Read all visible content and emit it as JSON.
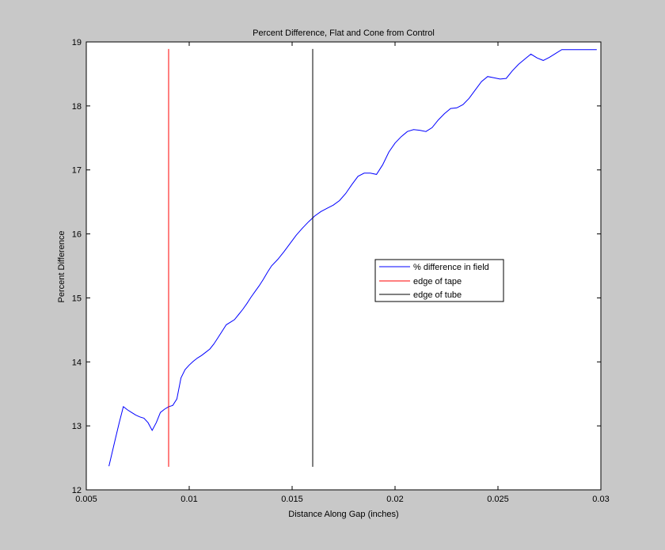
{
  "chart_data": {
    "type": "line",
    "title": "Percent Difference, Flat and Cone from Control",
    "xlabel": "Distance Along Gap (inches)",
    "ylabel": "Percent Difference",
    "xlim": [
      0.005,
      0.03
    ],
    "ylim": [
      12,
      19
    ],
    "xticks": [
      {
        "value": 0.005,
        "label": "0.005"
      },
      {
        "value": 0.01,
        "label": "0.01"
      },
      {
        "value": 0.015,
        "label": "0.015"
      },
      {
        "value": 0.02,
        "label": "0.02"
      },
      {
        "value": 0.025,
        "label": "0.025"
      },
      {
        "value": 0.03,
        "label": "0.03"
      }
    ],
    "yticks": [
      {
        "value": 12,
        "label": "12"
      },
      {
        "value": 13,
        "label": "13"
      },
      {
        "value": 14,
        "label": "14"
      },
      {
        "value": 15,
        "label": "15"
      },
      {
        "value": 16,
        "label": "16"
      },
      {
        "value": 17,
        "label": "17"
      },
      {
        "value": 18,
        "label": "18"
      },
      {
        "value": 19,
        "label": "19"
      }
    ],
    "grid": false,
    "legend_position": "center-right",
    "series": [
      {
        "name": "% difference in field",
        "color": "#0000ff",
        "x": [
          0.0061,
          0.0064,
          0.0066,
          0.0068,
          0.007,
          0.0072,
          0.0074,
          0.0076,
          0.0078,
          0.008,
          0.0082,
          0.0084,
          0.0086,
          0.0088,
          0.009,
          0.0092,
          0.0094,
          0.0096,
          0.0098,
          0.01,
          0.0102,
          0.0104,
          0.0106,
          0.0108,
          0.011,
          0.0112,
          0.0114,
          0.0116,
          0.0118,
          0.012,
          0.0122,
          0.0124,
          0.0126,
          0.0128,
          0.013,
          0.0132,
          0.0134,
          0.0136,
          0.0138,
          0.014,
          0.0143,
          0.0146,
          0.0149,
          0.0152,
          0.0155,
          0.0158,
          0.0161,
          0.0164,
          0.0167,
          0.017,
          0.0173,
          0.0176,
          0.0179,
          0.0182,
          0.0185,
          0.0188,
          0.0191,
          0.0194,
          0.0197,
          0.02,
          0.0203,
          0.0206,
          0.0209,
          0.0212,
          0.0215,
          0.0218,
          0.0221,
          0.0224,
          0.0227,
          0.023,
          0.0233,
          0.0236,
          0.0239,
          0.0242,
          0.0245,
          0.0248,
          0.0251,
          0.0254,
          0.0257,
          0.026,
          0.0263,
          0.0266,
          0.0269,
          0.0272,
          0.0275,
          0.0278,
          0.0281,
          0.0284,
          0.0287,
          0.029,
          0.0293,
          0.0296,
          0.0298
        ],
        "y": [
          12.37,
          12.78,
          13.05,
          13.3,
          13.25,
          13.21,
          13.17,
          13.14,
          13.12,
          13.05,
          12.93,
          13.05,
          13.21,
          13.26,
          13.3,
          13.32,
          13.42,
          13.75,
          13.88,
          13.95,
          14.01,
          14.06,
          14.1,
          14.15,
          14.2,
          14.28,
          14.38,
          14.48,
          14.58,
          14.62,
          14.66,
          14.74,
          14.82,
          14.91,
          15.01,
          15.1,
          15.19,
          15.29,
          15.4,
          15.5,
          15.6,
          15.72,
          15.85,
          15.98,
          16.09,
          16.19,
          16.28,
          16.35,
          16.4,
          16.45,
          16.52,
          16.63,
          16.77,
          16.9,
          16.95,
          16.95,
          16.93,
          17.08,
          17.28,
          17.42,
          17.52,
          17.6,
          17.63,
          17.62,
          17.6,
          17.66,
          17.78,
          17.88,
          17.96,
          17.97,
          18.02,
          18.12,
          18.25,
          18.38,
          18.46,
          18.44,
          18.42,
          18.43,
          18.55,
          18.65,
          18.73,
          18.81,
          18.75,
          18.71,
          18.76,
          18.82,
          18.88,
          18.88,
          18.88,
          18.88,
          18.88,
          18.88,
          18.88
        ]
      },
      {
        "name": "edge of tape",
        "color": "#ff0000",
        "x": [
          0.009,
          0.009
        ],
        "y": [
          12.36,
          18.89
        ]
      },
      {
        "name": "edge of tube",
        "color": "#000000",
        "x": [
          0.016,
          0.016
        ],
        "y": [
          12.36,
          18.89
        ]
      }
    ]
  }
}
